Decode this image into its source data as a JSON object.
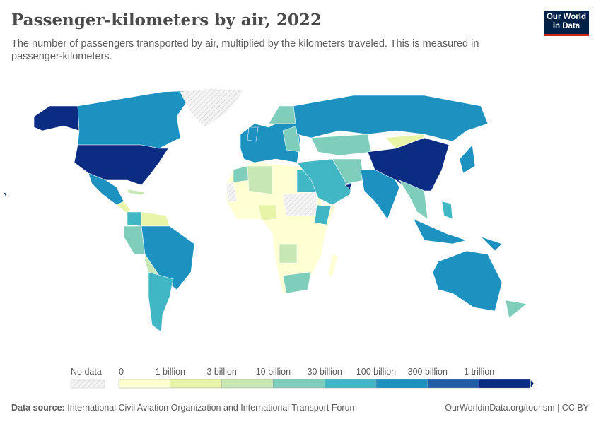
{
  "header": {
    "title": "Passenger-kilometers by air, 2022",
    "subtitle": "The number of passengers transported by air, multiplied by the kilometers traveled. This is measured in passenger-kilometers.",
    "logo": "Our World in Data"
  },
  "legend": {
    "no_data_label": "No data",
    "ticks": [
      "0",
      "1 billion",
      "3 billion",
      "10 billion",
      "30 billion",
      "100 billion",
      "300 billion",
      "1 trillion"
    ],
    "colors": [
      "#ffffd3",
      "#e8f5a9",
      "#c7e8b4",
      "#7fcdbb",
      "#41b6c4",
      "#1d91c0",
      "#225ea8",
      "#0c2c84"
    ]
  },
  "footer": {
    "source_label": "Data source:",
    "source": "International Civil Aviation Organization and International Transport Forum",
    "url": "OurWorldinData.org/tourism | CC BY"
  }
}
